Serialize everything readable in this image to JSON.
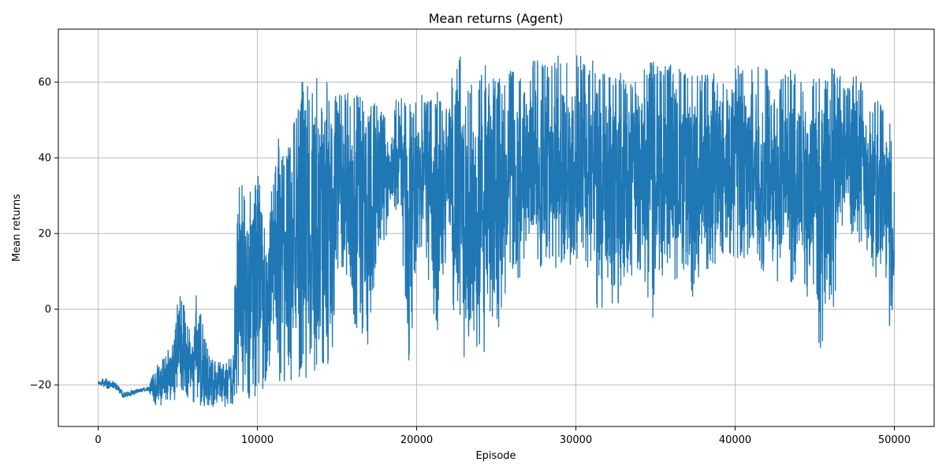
{
  "chart_data": {
    "type": "line",
    "title": "Mean returns (Agent)",
    "xlabel": "Episode",
    "ylabel": "Mean returns",
    "xlim": [
      -2500,
      52500
    ],
    "ylim": [
      -31,
      74
    ],
    "xticks": [
      0,
      10000,
      20000,
      30000,
      40000,
      50000
    ],
    "yticks": [
      -20,
      0,
      20,
      40,
      60
    ],
    "grid": true,
    "legend": "none",
    "series": [
      {
        "color": "#1f77b4",
        "envelope": [
          {
            "x": 0,
            "low": -20,
            "high": -19
          },
          {
            "x": 500,
            "low": -21,
            "high": -18
          },
          {
            "x": 1000,
            "low": -21,
            "high": -19
          },
          {
            "x": 1600,
            "low": -23.5,
            "high": -22
          },
          {
            "x": 2000,
            "low": -23,
            "high": -21.5
          },
          {
            "x": 2600,
            "low": -22,
            "high": -21
          },
          {
            "x": 3200,
            "low": -21.5,
            "high": -20.5
          },
          {
            "x": 3500,
            "low": -26,
            "high": -16
          },
          {
            "x": 4200,
            "low": -25,
            "high": -12
          },
          {
            "x": 4800,
            "low": -24,
            "high": -8
          },
          {
            "x": 5000,
            "low": -23,
            "high": 4
          },
          {
            "x": 5500,
            "low": -23,
            "high": 2
          },
          {
            "x": 6000,
            "low": -25,
            "high": -12
          },
          {
            "x": 6100,
            "low": -25,
            "high": 4.5
          },
          {
            "x": 6500,
            "low": -26,
            "high": -2
          },
          {
            "x": 7000,
            "low": -26,
            "high": -12
          },
          {
            "x": 7500,
            "low": -26,
            "high": -14
          },
          {
            "x": 8000,
            "low": -26,
            "high": -14
          },
          {
            "x": 8500,
            "low": -25,
            "high": -12
          },
          {
            "x": 8600,
            "low": -24,
            "high": 13
          },
          {
            "x": 8900,
            "low": -22,
            "high": 37
          },
          {
            "x": 9400,
            "low": -24,
            "high": 33
          },
          {
            "x": 9700,
            "low": -25,
            "high": 45
          },
          {
            "x": 10000,
            "low": -22,
            "high": 40
          },
          {
            "x": 10500,
            "low": -21,
            "high": 20
          },
          {
            "x": 11000,
            "low": -16,
            "high": 35
          },
          {
            "x": 11300,
            "low": -21,
            "high": 46.5
          },
          {
            "x": 11800,
            "low": -21,
            "high": 40
          },
          {
            "x": 12300,
            "low": -22,
            "high": 50
          },
          {
            "x": 12600,
            "low": -22,
            "high": 56
          },
          {
            "x": 12900,
            "low": -20,
            "high": 63
          },
          {
            "x": 13300,
            "low": -17,
            "high": 58
          },
          {
            "x": 13700,
            "low": -17,
            "high": 66
          },
          {
            "x": 14000,
            "low": -13,
            "high": 55
          },
          {
            "x": 14300,
            "low": -17,
            "high": 61
          },
          {
            "x": 14700,
            "low": -11,
            "high": 60
          },
          {
            "x": 15000,
            "low": 8,
            "high": 58
          },
          {
            "x": 15500,
            "low": 8,
            "high": 57
          },
          {
            "x": 16000,
            "low": -5,
            "high": 58
          },
          {
            "x": 16500,
            "low": -7,
            "high": 56
          },
          {
            "x": 17000,
            "low": -10,
            "high": 54
          },
          {
            "x": 17500,
            "low": 15,
            "high": 55
          },
          {
            "x": 18000,
            "low": 15,
            "high": 52
          },
          {
            "x": 18300,
            "low": 28,
            "high": 40
          },
          {
            "x": 18700,
            "low": 25,
            "high": 56
          },
          {
            "x": 19000,
            "low": 30,
            "high": 57
          },
          {
            "x": 19300,
            "low": -7,
            "high": 55
          },
          {
            "x": 19600,
            "low": -18.5,
            "high": 54
          },
          {
            "x": 20000,
            "low": 15,
            "high": 56
          },
          {
            "x": 20500,
            "low": 15,
            "high": 57
          },
          {
            "x": 21000,
            "low": -2,
            "high": 56
          },
          {
            "x": 21300,
            "low": -7,
            "high": 58
          },
          {
            "x": 21800,
            "low": 10,
            "high": 55
          },
          {
            "x": 22000,
            "low": 25,
            "high": 50
          },
          {
            "x": 22300,
            "low": -3,
            "high": 69.5
          },
          {
            "x": 22700,
            "low": -2,
            "high": 68
          },
          {
            "x": 23000,
            "low": -14,
            "high": 58
          },
          {
            "x": 23400,
            "low": -5,
            "high": 60
          },
          {
            "x": 23800,
            "low": -15,
            "high": 58
          },
          {
            "x": 24200,
            "low": -12,
            "high": 67
          },
          {
            "x": 24700,
            "low": -9,
            "high": 62
          },
          {
            "x": 25000,
            "low": -7,
            "high": 60
          },
          {
            "x": 25300,
            "low": -3,
            "high": 62
          },
          {
            "x": 25700,
            "low": 8,
            "high": 64
          },
          {
            "x": 26000,
            "low": 9,
            "high": 65
          },
          {
            "x": 26500,
            "low": 7,
            "high": 61
          },
          {
            "x": 27000,
            "low": 13,
            "high": 59
          },
          {
            "x": 27300,
            "low": 15,
            "high": 66
          },
          {
            "x": 27800,
            "low": 10,
            "high": 66
          },
          {
            "x": 28300,
            "low": 10,
            "high": 64
          },
          {
            "x": 28800,
            "low": 11,
            "high": 67
          },
          {
            "x": 29300,
            "low": 11,
            "high": 68
          },
          {
            "x": 29800,
            "low": 12,
            "high": 67
          },
          {
            "x": 30300,
            "low": 11,
            "high": 67
          },
          {
            "x": 30800,
            "low": 8,
            "high": 65
          },
          {
            "x": 31000,
            "low": 10,
            "high": 69
          },
          {
            "x": 31300,
            "low": -4,
            "high": 66
          },
          {
            "x": 31800,
            "low": -3,
            "high": 64
          },
          {
            "x": 32300,
            "low": 0,
            "high": 62
          },
          {
            "x": 32800,
            "low": 2,
            "high": 63
          },
          {
            "x": 33300,
            "low": 8,
            "high": 60
          },
          {
            "x": 33800,
            "low": 8,
            "high": 64
          },
          {
            "x": 34300,
            "low": 8,
            "high": 65
          },
          {
            "x": 34800,
            "low": -3,
            "high": 66
          },
          {
            "x": 35300,
            "low": 8,
            "high": 64
          },
          {
            "x": 35800,
            "low": 8,
            "high": 65
          },
          {
            "x": 36300,
            "low": 7,
            "high": 67
          },
          {
            "x": 36800,
            "low": 10,
            "high": 64
          },
          {
            "x": 37300,
            "low": 2,
            "high": 63
          },
          {
            "x": 37800,
            "low": 8,
            "high": 64
          },
          {
            "x": 38300,
            "low": 10,
            "high": 62
          },
          {
            "x": 38800,
            "low": 12,
            "high": 63
          },
          {
            "x": 39300,
            "low": 13,
            "high": 63
          },
          {
            "x": 39700,
            "low": 12,
            "high": 55
          },
          {
            "x": 40000,
            "low": 13,
            "high": 64
          },
          {
            "x": 40500,
            "low": 13,
            "high": 66
          },
          {
            "x": 41000,
            "low": 12,
            "high": 67
          },
          {
            "x": 41500,
            "low": 10,
            "high": 65
          },
          {
            "x": 42000,
            "low": 8,
            "high": 64
          },
          {
            "x": 42300,
            "low": 12,
            "high": 55
          },
          {
            "x": 42700,
            "low": 5,
            "high": 57
          },
          {
            "x": 43000,
            "low": 10,
            "high": 63
          },
          {
            "x": 43500,
            "low": 6,
            "high": 64
          },
          {
            "x": 44000,
            "low": 5,
            "high": 63
          },
          {
            "x": 44500,
            "low": 3,
            "high": 60
          },
          {
            "x": 45000,
            "low": 3,
            "high": 62
          },
          {
            "x": 45300,
            "low": -13,
            "high": 63
          },
          {
            "x": 45700,
            "low": -5,
            "high": 63
          },
          {
            "x": 46200,
            "low": -2,
            "high": 64
          },
          {
            "x": 46500,
            "low": 19,
            "high": 63
          },
          {
            "x": 47000,
            "low": 25,
            "high": 58
          },
          {
            "x": 47500,
            "low": 15,
            "high": 62
          },
          {
            "x": 48000,
            "low": 18,
            "high": 60
          },
          {
            "x": 48500,
            "low": 12,
            "high": 54
          },
          {
            "x": 49000,
            "low": 2,
            "high": 56
          },
          {
            "x": 49400,
            "low": 5,
            "high": 52
          },
          {
            "x": 49700,
            "low": -5,
            "high": 50
          },
          {
            "x": 50000,
            "low": 1,
            "high": 39
          }
        ]
      }
    ]
  }
}
